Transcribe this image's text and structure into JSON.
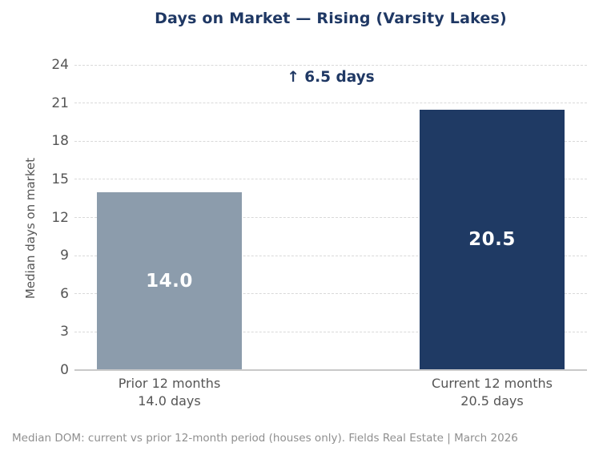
{
  "footer": "Median DOM: current vs prior 12-month period (houses only). Fields Real Estate | March 2026",
  "chart_data": {
    "type": "bar",
    "title": "Days on Market — Rising (Varsity Lakes)",
    "annotation": "↑ 6.5 days",
    "xlabel": "",
    "ylabel": "Median days on market",
    "ylim": [
      0,
      24
    ],
    "yticks": [
      0,
      3,
      6,
      9,
      12,
      15,
      18,
      21,
      24
    ],
    "grid": "horizontal dashed",
    "legend": "none",
    "categories": [
      "Prior 12 months\n14.0 days",
      "Current 12 months\n20.5 days"
    ],
    "values": [
      14.0,
      20.5
    ],
    "bars": [
      {
        "label_line1": "Prior 12 months",
        "label_line2": "14.0 days",
        "value": 14.0,
        "value_label": "14.0",
        "color": "#8c9cac"
      },
      {
        "label_line1": "Current 12 months",
        "label_line2": "20.5 days",
        "value": 20.5,
        "value_label": "20.5",
        "color": "#1f3a64"
      }
    ]
  },
  "colors": {
    "title_text": "#1f3864",
    "annotation_text": "#1f3864",
    "axis_text": "#555555",
    "bar_value_text": "#ffffff",
    "gridline": "#d9d9d9",
    "axis_line": "#c9c9c9",
    "footer_text": "#8f8f8f",
    "background": "#ffffff"
  }
}
